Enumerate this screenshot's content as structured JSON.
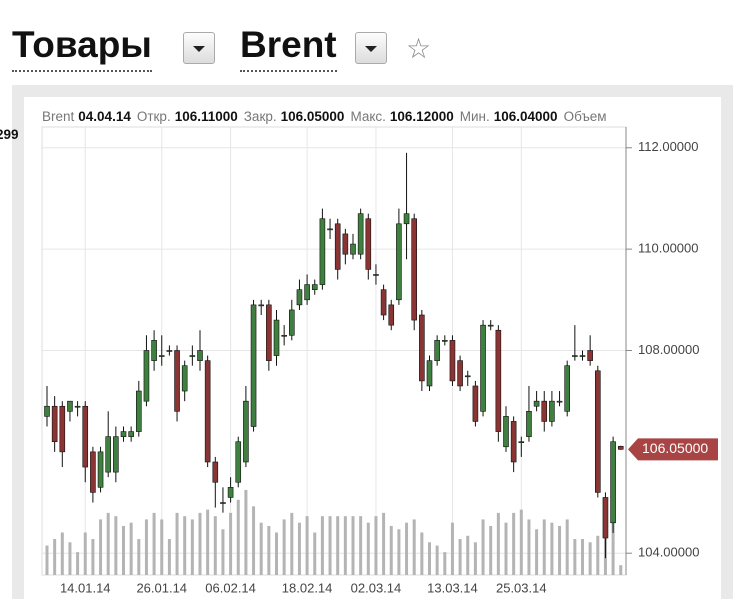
{
  "header": {
    "category": "Товары",
    "instrument": "Brent"
  },
  "chart_data": {
    "type": "candlestick",
    "info": [
      {
        "label": "Brent",
        "value": "04.04.14"
      },
      {
        "label": "Откр.",
        "value": "106.11000"
      },
      {
        "label": "Закр.",
        "value": "106.05000"
      },
      {
        "label": "Макс.",
        "value": "106.12000"
      },
      {
        "label": "Мин.",
        "value": "106.04000"
      },
      {
        "label": "Объем",
        "value": "299"
      }
    ],
    "categories": [
      null,
      null,
      null,
      null,
      null,
      "14.01.14",
      null,
      null,
      null,
      null,
      null,
      null,
      null,
      null,
      null,
      "26.01.14",
      null,
      null,
      null,
      null,
      null,
      null,
      null,
      null,
      "06.02.14",
      null,
      null,
      null,
      null,
      null,
      null,
      null,
      null,
      null,
      "18.02.14",
      null,
      null,
      null,
      null,
      null,
      null,
      null,
      null,
      "02.03.14",
      null,
      null,
      null,
      null,
      null,
      null,
      null,
      null,
      null,
      "13.03.14",
      null,
      null,
      null,
      null,
      null,
      null,
      null,
      null,
      "25.03.14",
      null,
      null,
      null,
      null,
      null,
      null,
      null,
      null,
      null,
      null,
      null,
      null,
      null
    ],
    "open": [
      106.7,
      106.9,
      106.9,
      106.8,
      106.9,
      106.9,
      106.0,
      105.3,
      105.6,
      105.6,
      106.3,
      106.3,
      106.4,
      107.0,
      107.8,
      107.9,
      108.0,
      108.0,
      107.2,
      107.9,
      107.8,
      107.8,
      105.8,
      105.0,
      105.1,
      105.4,
      105.8,
      106.5,
      108.9,
      108.9,
      107.9,
      108.3,
      108.3,
      108.9,
      109.0,
      109.2,
      109.3,
      110.4,
      110.5,
      110.3,
      109.9,
      109.9,
      110.6,
      109.5,
      109.2,
      108.9,
      109.0,
      110.5,
      110.6,
      108.7,
      107.3,
      107.8,
      108.2,
      108.2,
      107.8,
      107.5,
      107.3,
      106.8,
      108.5,
      108.4,
      106.1,
      106.6,
      106.2,
      106.3,
      106.9,
      107.0,
      106.6,
      107.0,
      106.8,
      107.9,
      107.9,
      108.0,
      107.6,
      105.1,
      104.6,
      106.11
    ],
    "high": [
      107.3,
      107.1,
      107.0,
      107.0,
      107.0,
      107.0,
      106.1,
      106.1,
      106.8,
      106.5,
      106.5,
      106.5,
      107.4,
      108.3,
      108.4,
      108.3,
      108.1,
      108.1,
      107.8,
      108.1,
      108.4,
      107.9,
      105.9,
      105.3,
      105.5,
      106.3,
      107.3,
      109.0,
      109.0,
      109.0,
      108.8,
      108.5,
      109.0,
      109.4,
      109.5,
      109.4,
      110.8,
      110.6,
      110.6,
      110.4,
      110.3,
      110.8,
      110.7,
      109.7,
      109.3,
      109.0,
      110.8,
      111.9,
      110.7,
      108.8,
      107.9,
      108.3,
      108.3,
      108.3,
      107.9,
      107.6,
      107.4,
      108.6,
      108.6,
      108.5,
      106.9,
      106.7,
      106.3,
      107.3,
      107.2,
      107.2,
      107.2,
      107.2,
      107.8,
      108.5,
      108.0,
      108.3,
      107.7,
      105.2,
      106.3,
      106.12
    ],
    "low": [
      106.5,
      106.0,
      105.7,
      106.6,
      106.7,
      105.4,
      105.0,
      105.2,
      105.5,
      105.4,
      106.2,
      106.2,
      106.3,
      106.9,
      107.6,
      107.7,
      107.9,
      106.6,
      107.0,
      107.7,
      107.6,
      105.7,
      104.9,
      104.8,
      105.0,
      105.3,
      105.7,
      106.4,
      108.7,
      107.6,
      107.7,
      108.1,
      108.2,
      108.8,
      108.9,
      109.1,
      109.2,
      110.2,
      109.4,
      109.7,
      109.8,
      109.8,
      109.4,
      109.3,
      108.6,
      108.4,
      108.9,
      109.8,
      108.4,
      107.2,
      107.2,
      107.7,
      108.1,
      107.3,
      107.2,
      107.3,
      106.5,
      106.7,
      108.4,
      106.2,
      106.0,
      105.6,
      105.9,
      106.2,
      106.8,
      106.4,
      106.5,
      106.9,
      106.7,
      107.8,
      107.8,
      107.7,
      105.1,
      103.9,
      104.4,
      106.04
    ],
    "close": [
      106.9,
      106.2,
      106.0,
      107.0,
      106.9,
      105.7,
      105.2,
      106.0,
      106.3,
      106.3,
      106.4,
      106.4,
      107.2,
      108.0,
      108.2,
      107.9,
      108.0,
      106.8,
      107.7,
      107.9,
      108.0,
      105.8,
      105.4,
      105.0,
      105.3,
      106.2,
      107.0,
      108.9,
      108.9,
      107.8,
      108.6,
      108.3,
      108.8,
      109.2,
      109.3,
      109.3,
      110.6,
      110.4,
      109.6,
      109.9,
      110.1,
      110.7,
      109.6,
      109.5,
      108.7,
      108.5,
      110.5,
      110.7,
      108.6,
      107.4,
      107.8,
      108.2,
      108.2,
      107.4,
      107.3,
      107.5,
      106.6,
      108.5,
      108.5,
      106.4,
      106.7,
      105.8,
      106.2,
      106.8,
      107.0,
      106.6,
      107.0,
      107.0,
      107.7,
      107.9,
      107.9,
      107.8,
      105.2,
      104.3,
      106.2,
      106.05
    ],
    "volume": [
      900,
      1100,
      1300,
      1000,
      700,
      1300,
      1100,
      1700,
      1900,
      1800,
      1500,
      1600,
      1100,
      1700,
      1900,
      1700,
      1100,
      1900,
      1800,
      1700,
      1900,
      2000,
      1800,
      1400,
      1900,
      2300,
      2600,
      2100,
      1600,
      1500,
      1300,
      1700,
      1900,
      1600,
      1800,
      1300,
      1800,
      1800,
      1800,
      1800,
      1800,
      1800,
      1600,
      1800,
      1900,
      1500,
      1400,
      1600,
      1700,
      1300,
      1000,
      900,
      700,
      1600,
      1100,
      1200,
      1000,
      1700,
      1500,
      1900,
      1600,
      1900,
      2000,
      1700,
      1400,
      1700,
      1600,
      1500,
      1700,
      1100,
      1100,
      1000,
      1200,
      1500,
      2000,
      299
    ],
    "ylim": [
      103.57,
      112.41
    ],
    "yticks": [
      {
        "value": 104,
        "label": "104.00000"
      },
      {
        "value": 108,
        "label": "108.00000"
      },
      {
        "value": 110,
        "label": "110.00000"
      },
      {
        "value": 112,
        "label": "112.00000"
      }
    ],
    "last_price": {
      "value": 106.05,
      "label": "106.05000"
    },
    "grid": true,
    "up_color": "#3f7f3f",
    "down_color": "#8a3434",
    "volume_color": "#b4b4b4",
    "price_tag_color": "#a84444"
  }
}
